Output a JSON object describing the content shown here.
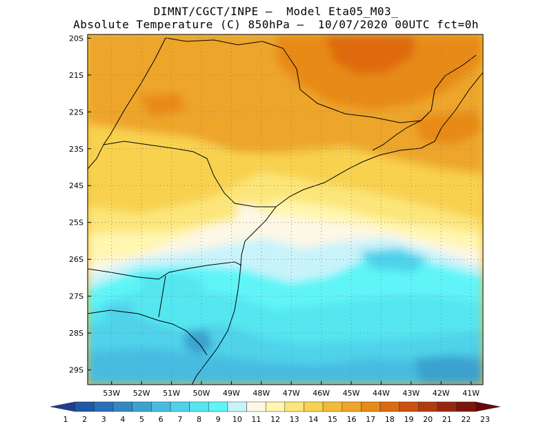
{
  "title": {
    "line1": "DIMNT/CGCT/INPE –  Model Eta05_M03_",
    "line2": "Absolute Temperature (C) 850hPa –  10/07/2020 00UTC fct=0h"
  },
  "map": {
    "lat_labels": [
      "20S",
      "21S",
      "22S",
      "23S",
      "24S",
      "25S",
      "26S",
      "27S",
      "28S",
      "29S"
    ],
    "lon_labels": [
      "53W",
      "52W",
      "51W",
      "50W",
      "49W",
      "48W",
      "47W",
      "46W",
      "45W",
      "44W",
      "43W",
      "42W",
      "41W"
    ],
    "lat_range": [
      -29.4,
      -19.9
    ],
    "lon_range": [
      -53.8,
      -40.6
    ],
    "grid": "dotted"
  },
  "colorbar": {
    "labels": [
      "1",
      "2",
      "3",
      "4",
      "5",
      "6",
      "7",
      "8",
      "9",
      "10",
      "11",
      "12",
      "13",
      "14",
      "15",
      "16",
      "17",
      "18",
      "19",
      "20",
      "21",
      "22",
      "23"
    ],
    "colors": [
      "#1c3f8f",
      "#2058a8",
      "#2a70b8",
      "#3388c2",
      "#3ba2cf",
      "#47bce0",
      "#4fd2ea",
      "#55e6f0",
      "#5ef5f8",
      "#c9f3fb",
      "#fdf7e6",
      "#fff6b0",
      "#fce67a",
      "#f8d24f",
      "#f2bc3a",
      "#eda52a",
      "#e88a18",
      "#de6a10",
      "#c95210",
      "#b03c0e",
      "#97270c",
      "#7e150a",
      "#66060a"
    ]
  }
}
